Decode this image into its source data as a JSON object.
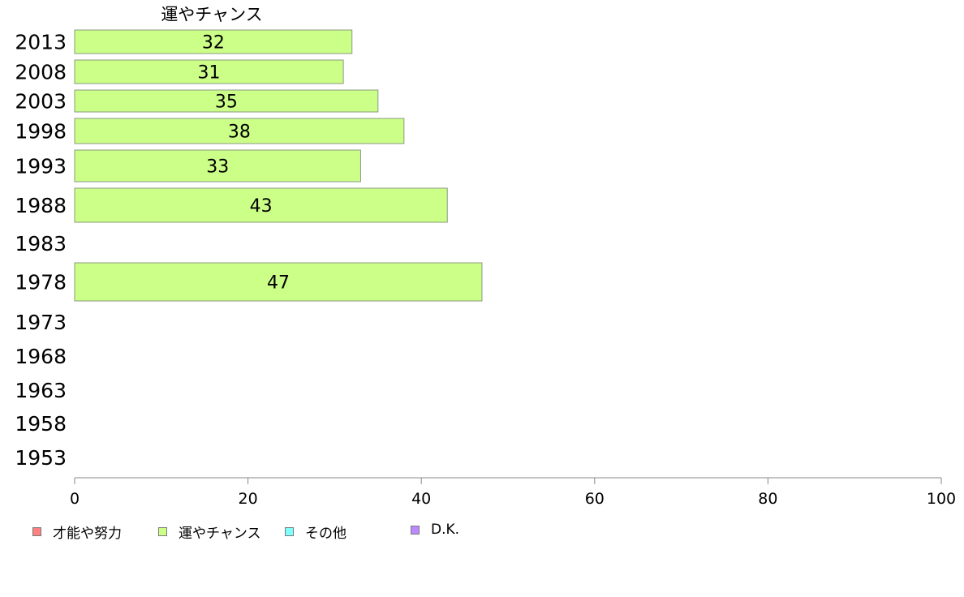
{
  "chart_data": {
    "type": "bar",
    "orientation": "horizontal",
    "title": "運やチャンス",
    "categories": [
      "2013",
      "2008",
      "2003",
      "1998",
      "1993",
      "1988",
      "1983",
      "1978",
      "1973",
      "1968",
      "1963",
      "1958",
      "1953"
    ],
    "series": [
      {
        "name": "運やチャンス",
        "values": [
          32,
          31,
          35,
          38,
          33,
          43,
          null,
          47,
          null,
          null,
          null,
          null,
          null
        ]
      }
    ],
    "data_labels": [
      "32",
      "31",
      "35",
      "38",
      "33",
      "43",
      "",
      "47",
      "",
      "",
      "",
      "",
      ""
    ],
    "xlim": [
      0,
      100
    ],
    "x_ticks": [
      "0",
      "20",
      "40",
      "60",
      "80",
      "100"
    ],
    "grid": false,
    "legend_position": "bottom-left",
    "bar_color": "#ccff88"
  },
  "legend": {
    "items": [
      {
        "label": "才能や努力",
        "color": "#ff8080"
      },
      {
        "label": "運やチャンス",
        "color": "#ccff88"
      },
      {
        "label": "その他",
        "color": "#80ffff"
      },
      {
        "label": "D.K.",
        "color": "#bb88ff"
      }
    ]
  }
}
